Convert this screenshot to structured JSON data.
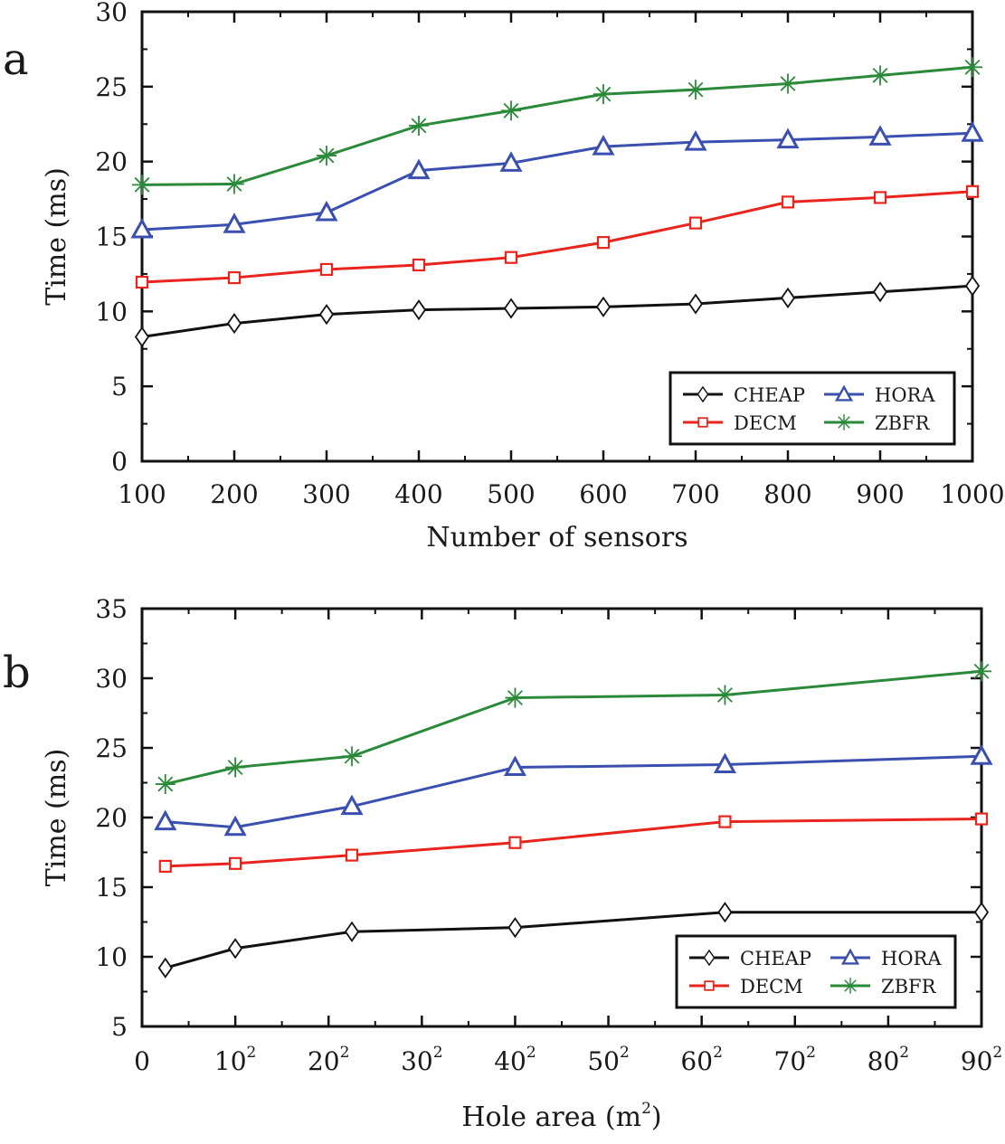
{
  "chart_data": [
    {
      "panel": "a",
      "type": "line",
      "title": "",
      "xlabel": "Number of sensors",
      "ylabel": "Time (ms)",
      "xlim": [
        100,
        1000
      ],
      "ylim": [
        0,
        30
      ],
      "xticks": [
        100,
        200,
        300,
        400,
        500,
        600,
        700,
        800,
        900,
        1000
      ],
      "xtick_labels": [
        "100",
        "200",
        "300",
        "400",
        "500",
        "600",
        "700",
        "800",
        "900",
        "1000"
      ],
      "yticks": [
        0,
        5,
        10,
        15,
        20,
        25,
        30
      ],
      "ytick_labels": [
        "0",
        "5",
        "10",
        "15",
        "20",
        "25",
        "30"
      ],
      "grid": false,
      "legend_position": "bottom-right",
      "x": [
        100,
        200,
        300,
        400,
        500,
        600,
        700,
        800,
        900,
        1000
      ],
      "series": [
        {
          "name": "CHEAP",
          "color": "#111111",
          "marker": "diamond",
          "values": [
            8.3,
            9.2,
            9.8,
            10.1,
            10.2,
            10.3,
            10.5,
            10.9,
            11.3,
            11.7
          ]
        },
        {
          "name": "DECM",
          "color": "#e8241c",
          "marker": "square",
          "values": [
            11.95,
            12.25,
            12.8,
            13.1,
            13.6,
            14.6,
            15.9,
            17.3,
            17.6,
            18.0
          ]
        },
        {
          "name": "HORA",
          "color": "#3a4fb0",
          "marker": "triangle",
          "values": [
            15.45,
            15.8,
            16.6,
            19.4,
            19.9,
            21.0,
            21.3,
            21.45,
            21.65,
            21.9
          ]
        },
        {
          "name": "ZBFR",
          "color": "#2a8a3a",
          "marker": "star",
          "values": [
            18.45,
            18.5,
            20.4,
            22.4,
            23.4,
            24.5,
            24.8,
            25.2,
            25.75,
            26.3
          ]
        }
      ]
    },
    {
      "panel": "b",
      "type": "line",
      "title": "",
      "xlabel": "Hole area (m",
      "xlabel_sup": "2",
      "xlabel_suffix": ")",
      "ylabel": "Time (ms)",
      "xlim": [
        0,
        900
      ],
      "ylim": [
        5,
        35
      ],
      "xticks": [
        0,
        100,
        200,
        300,
        400,
        500,
        600,
        700,
        800,
        900
      ],
      "xtick_labels": [
        "0",
        "10",
        "20",
        "30",
        "40",
        "50",
        "60",
        "70",
        "80",
        "90"
      ],
      "xtick_sups": [
        "",
        "2",
        "2",
        "2",
        "2",
        "2",
        "2",
        "2",
        "2",
        "2"
      ],
      "yticks": [
        5,
        10,
        15,
        20,
        25,
        30,
        35
      ],
      "ytick_labels": [
        "5",
        "10",
        "15",
        "20",
        "25",
        "30",
        "35"
      ],
      "grid": false,
      "legend_position": "bottom-right",
      "x": [
        25,
        100,
        225,
        400,
        625,
        900
      ],
      "series": [
        {
          "name": "CHEAP",
          "color": "#111111",
          "marker": "diamond",
          "values": [
            9.2,
            10.6,
            11.8,
            12.1,
            13.2,
            13.2
          ]
        },
        {
          "name": "DECM",
          "color": "#e8241c",
          "marker": "square",
          "values": [
            16.5,
            16.7,
            17.3,
            18.2,
            19.7,
            19.9
          ]
        },
        {
          "name": "HORA",
          "color": "#3a4fb0",
          "marker": "triangle",
          "values": [
            19.7,
            19.3,
            20.8,
            23.6,
            23.8,
            24.4
          ]
        },
        {
          "name": "ZBFR",
          "color": "#2a8a3a",
          "marker": "star",
          "values": [
            22.4,
            23.6,
            24.4,
            28.6,
            28.8,
            30.5
          ]
        }
      ]
    }
  ]
}
